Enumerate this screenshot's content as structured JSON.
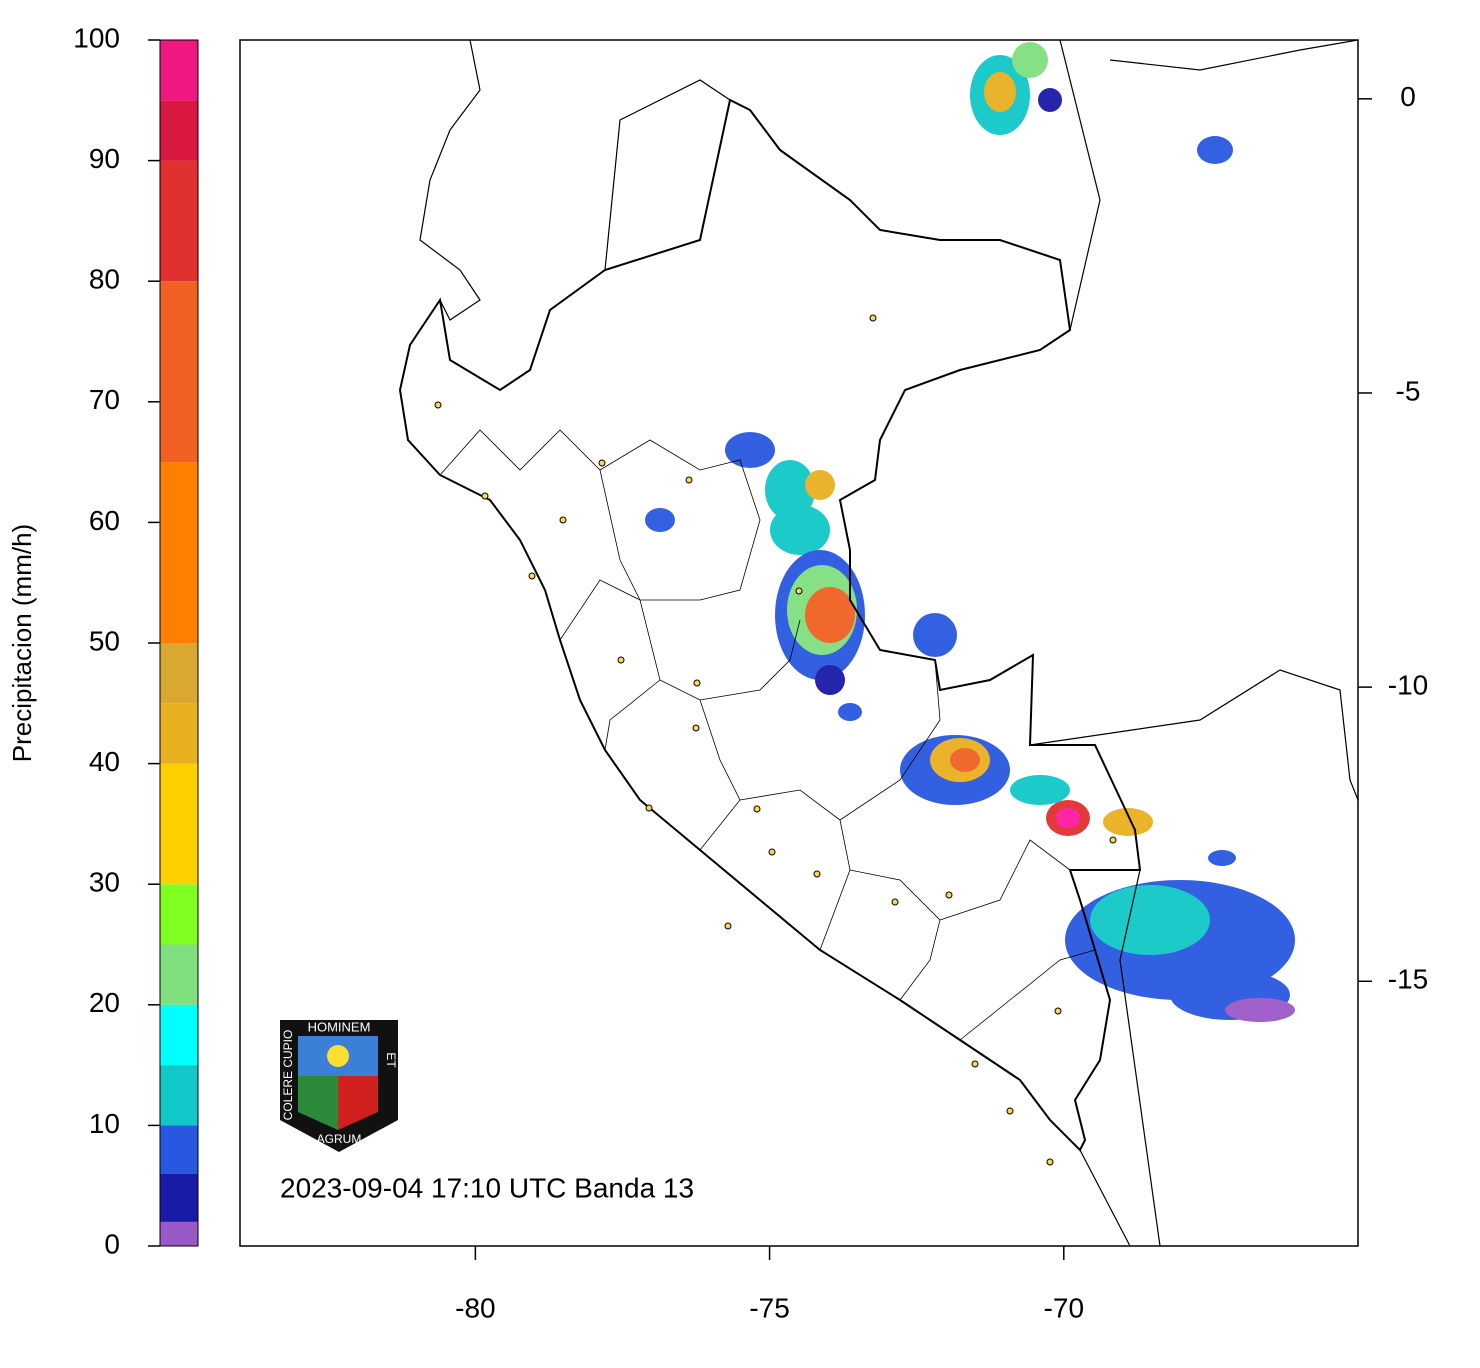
{
  "map": {
    "caption": "2023-09-04 17:10 UTC Banda 13",
    "xlim": [
      -84,
      -65
    ],
    "ylim": [
      -19.5,
      1
    ],
    "xticks": [
      -80,
      -75,
      -70
    ],
    "yticks": [
      0,
      -5,
      -10,
      -15
    ]
  },
  "colorbar": {
    "label": "Precipitacion (mm/h)",
    "lim": [
      0,
      100
    ],
    "ticks": [
      0,
      10,
      20,
      30,
      40,
      50,
      60,
      70,
      80,
      90,
      100
    ],
    "stops": [
      {
        "value": 0,
        "color": "#9b59c8"
      },
      {
        "value": 2,
        "color": "#1a1aa8"
      },
      {
        "value": 6,
        "color": "#2858e0"
      },
      {
        "value": 10,
        "color": "#10c8c8"
      },
      {
        "value": 15,
        "color": "#00ffff"
      },
      {
        "value": 20,
        "color": "#80e080"
      },
      {
        "value": 25,
        "color": "#80ff20"
      },
      {
        "value": 30,
        "color": "#ffd000"
      },
      {
        "value": 40,
        "color": "#e8b020"
      },
      {
        "value": 45,
        "color": "#d8a830"
      },
      {
        "value": 50,
        "color": "#ff8000"
      },
      {
        "value": 65,
        "color": "#f06020"
      },
      {
        "value": 80,
        "color": "#e03030"
      },
      {
        "value": 90,
        "color": "#d81840"
      },
      {
        "value": 95,
        "color": "#f01880"
      },
      {
        "value": 100,
        "color": "#ff1aa0"
      }
    ]
  },
  "logo": {
    "top": "HOMINEM",
    "right": "ET",
    "bottom": "AGRUM",
    "left": "COLERE CUPIO"
  }
}
